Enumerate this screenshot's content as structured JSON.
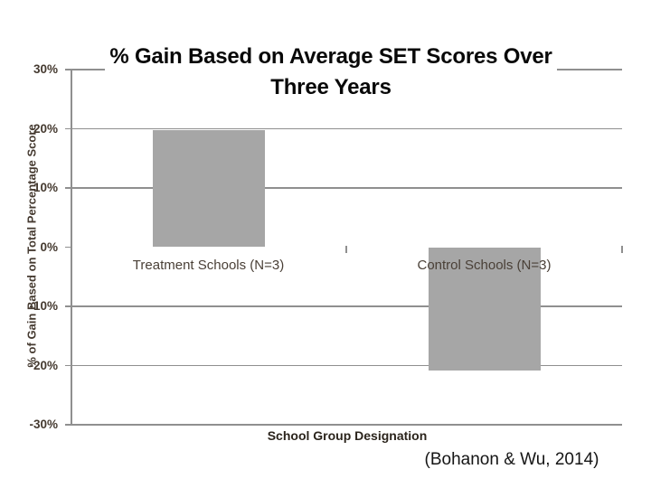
{
  "chart_data": {
    "type": "bar",
    "title": "% Gain Based on Average SET Scores Over Three Years",
    "categories": [
      "Treatment Schools (N=3)",
      "Control Schools (N=3)"
    ],
    "values": [
      19.8,
      -20.8
    ],
    "xlabel": "School Group Designation",
    "ylabel": "% of Gain Based on Total Percentage Score",
    "ylim": [
      -30,
      30
    ],
    "yticks": [
      {
        "value": 30,
        "label": "30%"
      },
      {
        "value": 20,
        "label": "20%"
      },
      {
        "value": 10,
        "label": "10%"
      },
      {
        "value": 0,
        "label": "0%"
      },
      {
        "value": -10,
        "label": "-10%"
      },
      {
        "value": -20,
        "label": "-20%"
      },
      {
        "value": -30,
        "label": "-30%"
      }
    ],
    "grid": true,
    "gridline_at_zero": false,
    "legend": false,
    "colors": {
      "bar": "#a6a6a6",
      "gridline": "#8f8f8f",
      "axis": "#8f8f8f",
      "tick_label": "#453a30",
      "category_label": "#4a4037",
      "title": "#080808"
    }
  },
  "citation": "(Bohanon & Wu, 2014)"
}
